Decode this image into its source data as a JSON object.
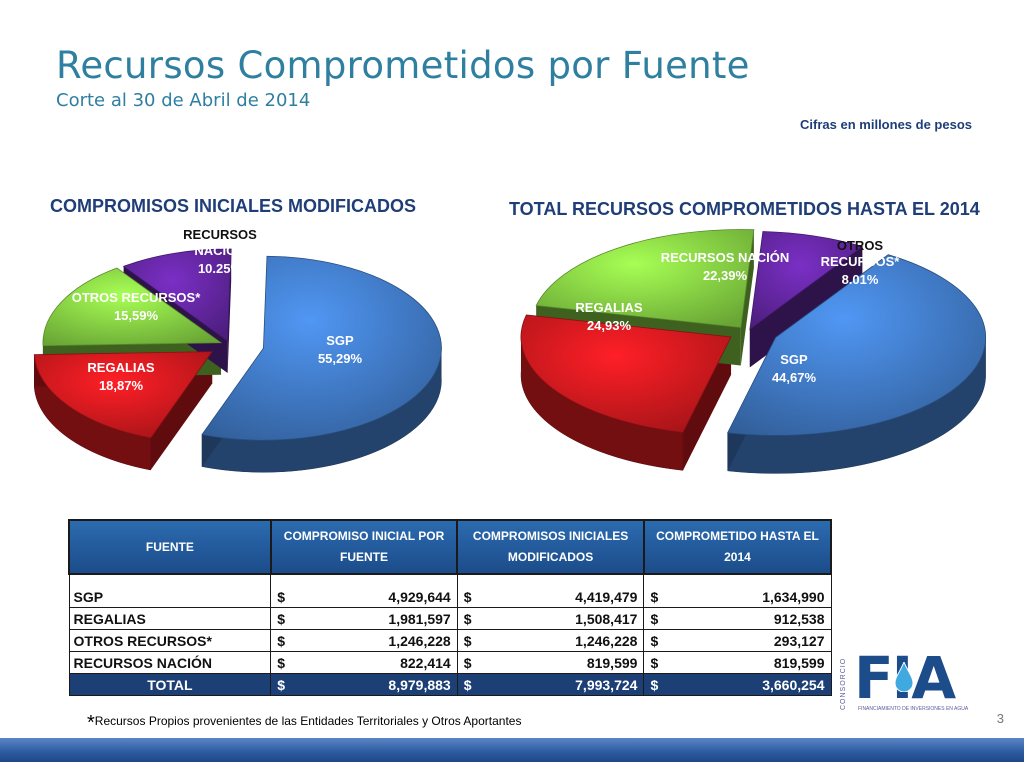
{
  "header": {
    "title": "Recursos Comprometidos por Fuente",
    "subtitle": "Corte al 30 de Abril de 2014",
    "units_note": "Cifras en millones de pesos"
  },
  "chart_data": [
    {
      "type": "pie",
      "title": "COMPROMISOS INICIALES MODIFICADOS",
      "slices": [
        {
          "name": "SGP",
          "value": 55.29,
          "label": "55,29%",
          "color": "#3B70B5"
        },
        {
          "name": "REGALIAS",
          "value": 18.87,
          "label": "18,87%",
          "color": "#C0171C"
        },
        {
          "name": "OTROS RECURSOS*",
          "value": 15.59,
          "label": "15,59%",
          "color": "#7CC23E"
        },
        {
          "name": "RECURSOS NACIÓN",
          "value": 10.25,
          "label": "10.25%",
          "color": "#5B2393"
        }
      ]
    },
    {
      "type": "pie",
      "title": "TOTAL RECURSOS COMPROMETIDOS HASTA EL 2014",
      "slices": [
        {
          "name": "SGP",
          "value": 44.67,
          "label": "44,67%",
          "color": "#3B70B5"
        },
        {
          "name": "REGALIAS",
          "value": 24.93,
          "label": "24,93%",
          "color": "#C0171C"
        },
        {
          "name": "RECURSOS NACIÓN",
          "value": 22.39,
          "label": "22,39%",
          "color": "#7CC23E"
        },
        {
          "name": "OTROS RECURSOS*",
          "value": 8.01,
          "label": "8.01%",
          "color": "#5B2393"
        }
      ]
    }
  ],
  "table": {
    "headers": [
      "FUENTE",
      "COMPROMISO INICIAL POR FUENTE",
      "COMPROMISOS INICIALES MODIFICADOS",
      "COMPROMETIDO HASTA EL 2014"
    ],
    "currency": "$",
    "rows": [
      {
        "fuente": "SGP",
        "c1": "4,929,644",
        "c2": "4,419,479",
        "c3": "1,634,990"
      },
      {
        "fuente": "REGALIAS",
        "c1": "1,981,597",
        "c2": "1,508,417",
        "c3": "912,538"
      },
      {
        "fuente": "OTROS RECURSOS*",
        "c1": "1,246,228",
        "c2": "1,246,228",
        "c3": "293,127"
      },
      {
        "fuente": "RECURSOS NACIÓN",
        "c1": "822,414",
        "c2": "819,599",
        "c3": "819,599"
      }
    ],
    "total": {
      "fuente": "TOTAL",
      "c1": "8,979,883",
      "c2": "7,993,724",
      "c3": "3,660,254"
    }
  },
  "footnote": {
    "star": "*",
    "text": "Recursos Propios provenientes de las Entidades Territoriales y Otros Aportantes"
  },
  "page_number": "3",
  "logo": {
    "text": "FIA",
    "side_text": "CONSORCIO",
    "subtitle": "FINANCIAMIENTO DE INVERSIONES EN AGUA"
  },
  "colors": {
    "title": "#2E7FA0",
    "navy": "#1F3E78",
    "table_header": "#2B6BAF",
    "table_total": "#1C3F75"
  }
}
